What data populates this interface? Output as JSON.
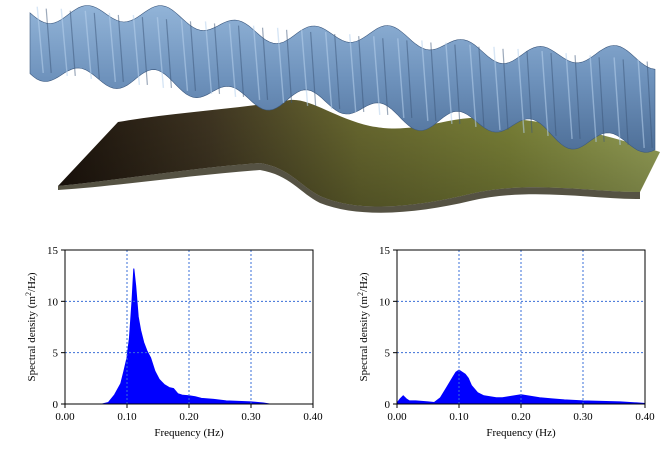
{
  "colors": {
    "upper_surface": "#6f93bd",
    "lower_surface": "#6b6a32",
    "spectrum_fill": "#0000ff",
    "grid": "#3a6fd8"
  },
  "illustration": {
    "upper_surface_label": "wavy sea-surface elevation",
    "lower_surface_label": "smooth bathymetry surface"
  },
  "chart_data": [
    {
      "type": "area",
      "title": "",
      "xlabel": "Frequency (Hz)",
      "ylabel_main": "Spectral density (m",
      "ylabel_sup": "2",
      "ylabel_tail": "/Hz)",
      "xlim": [
        0,
        0.4
      ],
      "ylim": [
        0,
        15
      ],
      "xticks": [
        0,
        0.1,
        0.2,
        0.3,
        0.4
      ],
      "xtick_labels": [
        "0.00",
        "0.10",
        "0.20",
        "0.30",
        "0.40"
      ],
      "yticks": [
        0,
        5,
        10,
        15
      ],
      "ytick_labels": [
        "0",
        "5",
        "10",
        "15"
      ],
      "grid": true,
      "series": [
        {
          "name": "spectrum",
          "x": [
            0,
            0.06,
            0.07,
            0.08,
            0.09,
            0.095,
            0.1,
            0.104,
            0.108,
            0.111,
            0.114,
            0.118,
            0.122,
            0.127,
            0.132,
            0.138,
            0.145,
            0.152,
            0.16,
            0.168,
            0.175,
            0.182,
            0.19,
            0.2,
            0.21,
            0.22,
            0.24,
            0.26,
            0.28,
            0.3,
            0.32,
            0.33,
            0.4
          ],
          "y": [
            0,
            0,
            0.15,
            0.9,
            2.0,
            3.2,
            4.5,
            6.5,
            10.0,
            13.2,
            11.5,
            8.5,
            7.2,
            6.0,
            5.2,
            4.5,
            3.2,
            2.4,
            1.9,
            1.6,
            1.5,
            1.0,
            0.85,
            0.8,
            0.7,
            0.55,
            0.45,
            0.3,
            0.25,
            0.2,
            0.1,
            0,
            0
          ]
        }
      ]
    },
    {
      "type": "area",
      "title": "",
      "xlabel": "Frequency (Hz)",
      "ylabel_main": "Spectral density (m",
      "ylabel_sup": "2",
      "ylabel_tail": "/Hz)",
      "xlim": [
        0,
        0.4
      ],
      "ylim": [
        0,
        15
      ],
      "xticks": [
        0,
        0.1,
        0.2,
        0.3,
        0.4
      ],
      "xtick_labels": [
        "0.00",
        "0.10",
        "0.20",
        "0.30",
        "0.40"
      ],
      "yticks": [
        0,
        5,
        10,
        15
      ],
      "ytick_labels": [
        "0",
        "5",
        "10",
        "15"
      ],
      "grid": true,
      "series": [
        {
          "name": "spectrum",
          "x": [
            0,
            0.005,
            0.01,
            0.015,
            0.02,
            0.03,
            0.04,
            0.05,
            0.06,
            0.07,
            0.08,
            0.09,
            0.095,
            0.1,
            0.105,
            0.11,
            0.115,
            0.12,
            0.13,
            0.14,
            0.15,
            0.16,
            0.17,
            0.18,
            0.19,
            0.2,
            0.21,
            0.22,
            0.23,
            0.25,
            0.27,
            0.3,
            0.33,
            0.36,
            0.39,
            0.4
          ],
          "y": [
            0.1,
            0.5,
            0.8,
            0.5,
            0.3,
            0.3,
            0.25,
            0.2,
            0.15,
            0.6,
            1.6,
            2.6,
            3.1,
            3.3,
            3.1,
            2.9,
            2.5,
            1.8,
            1.1,
            0.8,
            0.7,
            0.6,
            0.6,
            0.7,
            0.8,
            0.9,
            0.8,
            0.7,
            0.6,
            0.5,
            0.4,
            0.3,
            0.25,
            0.2,
            0.1,
            0.05
          ]
        }
      ]
    }
  ]
}
